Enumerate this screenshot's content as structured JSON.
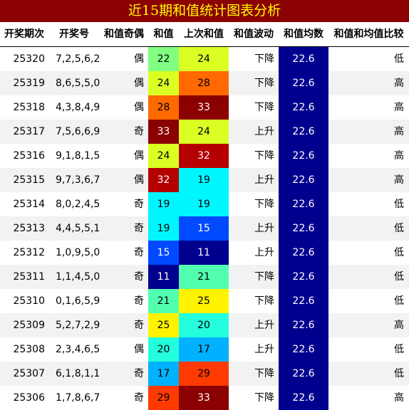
{
  "title": "近15期和值统计图表分析",
  "headers": [
    "开奖期次",
    "开奖号",
    "和值奇偶",
    "和值",
    "上次和值",
    "和值波动",
    "和值均数",
    "和值和均值比较"
  ],
  "colorscale": {
    "domain": [
      11,
      33
    ],
    "stops": [
      "#00008f",
      "#0000ff",
      "#00a0ff",
      "#00ffff",
      "#80ff80",
      "#ffff00",
      "#ff8000",
      "#ff0000",
      "#8b0000"
    ]
  },
  "mean_color": "#00008f",
  "chart_data": {
    "type": "table",
    "title": "近15期和值统计图表分析",
    "columns": [
      "开奖期次",
      "开奖号",
      "和值奇偶",
      "和值",
      "上次和值",
      "和值波动",
      "和值均数",
      "和值和均值比较"
    ],
    "rows": [
      {
        "period": "25320",
        "numbers": "7,2,5,6,2",
        "parity": "偶",
        "sum": 22,
        "prev_sum": 24,
        "trend": "下降",
        "mean": 22.6,
        "compare": "低"
      },
      {
        "period": "25319",
        "numbers": "8,6,5,5,0",
        "parity": "偶",
        "sum": 24,
        "prev_sum": 28,
        "trend": "下降",
        "mean": 22.6,
        "compare": "高"
      },
      {
        "period": "25318",
        "numbers": "4,3,8,4,9",
        "parity": "偶",
        "sum": 28,
        "prev_sum": 33,
        "trend": "下降",
        "mean": 22.6,
        "compare": "高"
      },
      {
        "period": "25317",
        "numbers": "7,5,6,6,9",
        "parity": "奇",
        "sum": 33,
        "prev_sum": 24,
        "trend": "上升",
        "mean": 22.6,
        "compare": "高"
      },
      {
        "period": "25316",
        "numbers": "9,1,8,1,5",
        "parity": "偶",
        "sum": 24,
        "prev_sum": 32,
        "trend": "下降",
        "mean": 22.6,
        "compare": "高"
      },
      {
        "period": "25315",
        "numbers": "9,7,3,6,7",
        "parity": "偶",
        "sum": 32,
        "prev_sum": 19,
        "trend": "上升",
        "mean": 22.6,
        "compare": "高"
      },
      {
        "period": "25314",
        "numbers": "8,0,2,4,5",
        "parity": "奇",
        "sum": 19,
        "prev_sum": 19,
        "trend": "下降",
        "mean": 22.6,
        "compare": "低"
      },
      {
        "period": "25313",
        "numbers": "4,4,5,5,1",
        "parity": "奇",
        "sum": 19,
        "prev_sum": 15,
        "trend": "上升",
        "mean": 22.6,
        "compare": "低"
      },
      {
        "period": "25312",
        "numbers": "1,0,9,5,0",
        "parity": "奇",
        "sum": 15,
        "prev_sum": 11,
        "trend": "上升",
        "mean": 22.6,
        "compare": "低"
      },
      {
        "period": "25311",
        "numbers": "1,1,4,5,0",
        "parity": "奇",
        "sum": 11,
        "prev_sum": 21,
        "trend": "下降",
        "mean": 22.6,
        "compare": "低"
      },
      {
        "period": "25310",
        "numbers": "0,1,6,5,9",
        "parity": "奇",
        "sum": 21,
        "prev_sum": 25,
        "trend": "下降",
        "mean": 22.6,
        "compare": "低"
      },
      {
        "period": "25309",
        "numbers": "5,2,7,2,9",
        "parity": "奇",
        "sum": 25,
        "prev_sum": 20,
        "trend": "上升",
        "mean": 22.6,
        "compare": "高"
      },
      {
        "period": "25308",
        "numbers": "2,3,4,6,5",
        "parity": "偶",
        "sum": 20,
        "prev_sum": 17,
        "trend": "上升",
        "mean": 22.6,
        "compare": "低"
      },
      {
        "period": "25307",
        "numbers": "6,1,8,1,1",
        "parity": "奇",
        "sum": 17,
        "prev_sum": 29,
        "trend": "下降",
        "mean": 22.6,
        "compare": "低"
      },
      {
        "period": "25306",
        "numbers": "1,7,8,6,7",
        "parity": "奇",
        "sum": 29,
        "prev_sum": 33,
        "trend": "下降",
        "mean": 22.6,
        "compare": "高"
      }
    ]
  }
}
